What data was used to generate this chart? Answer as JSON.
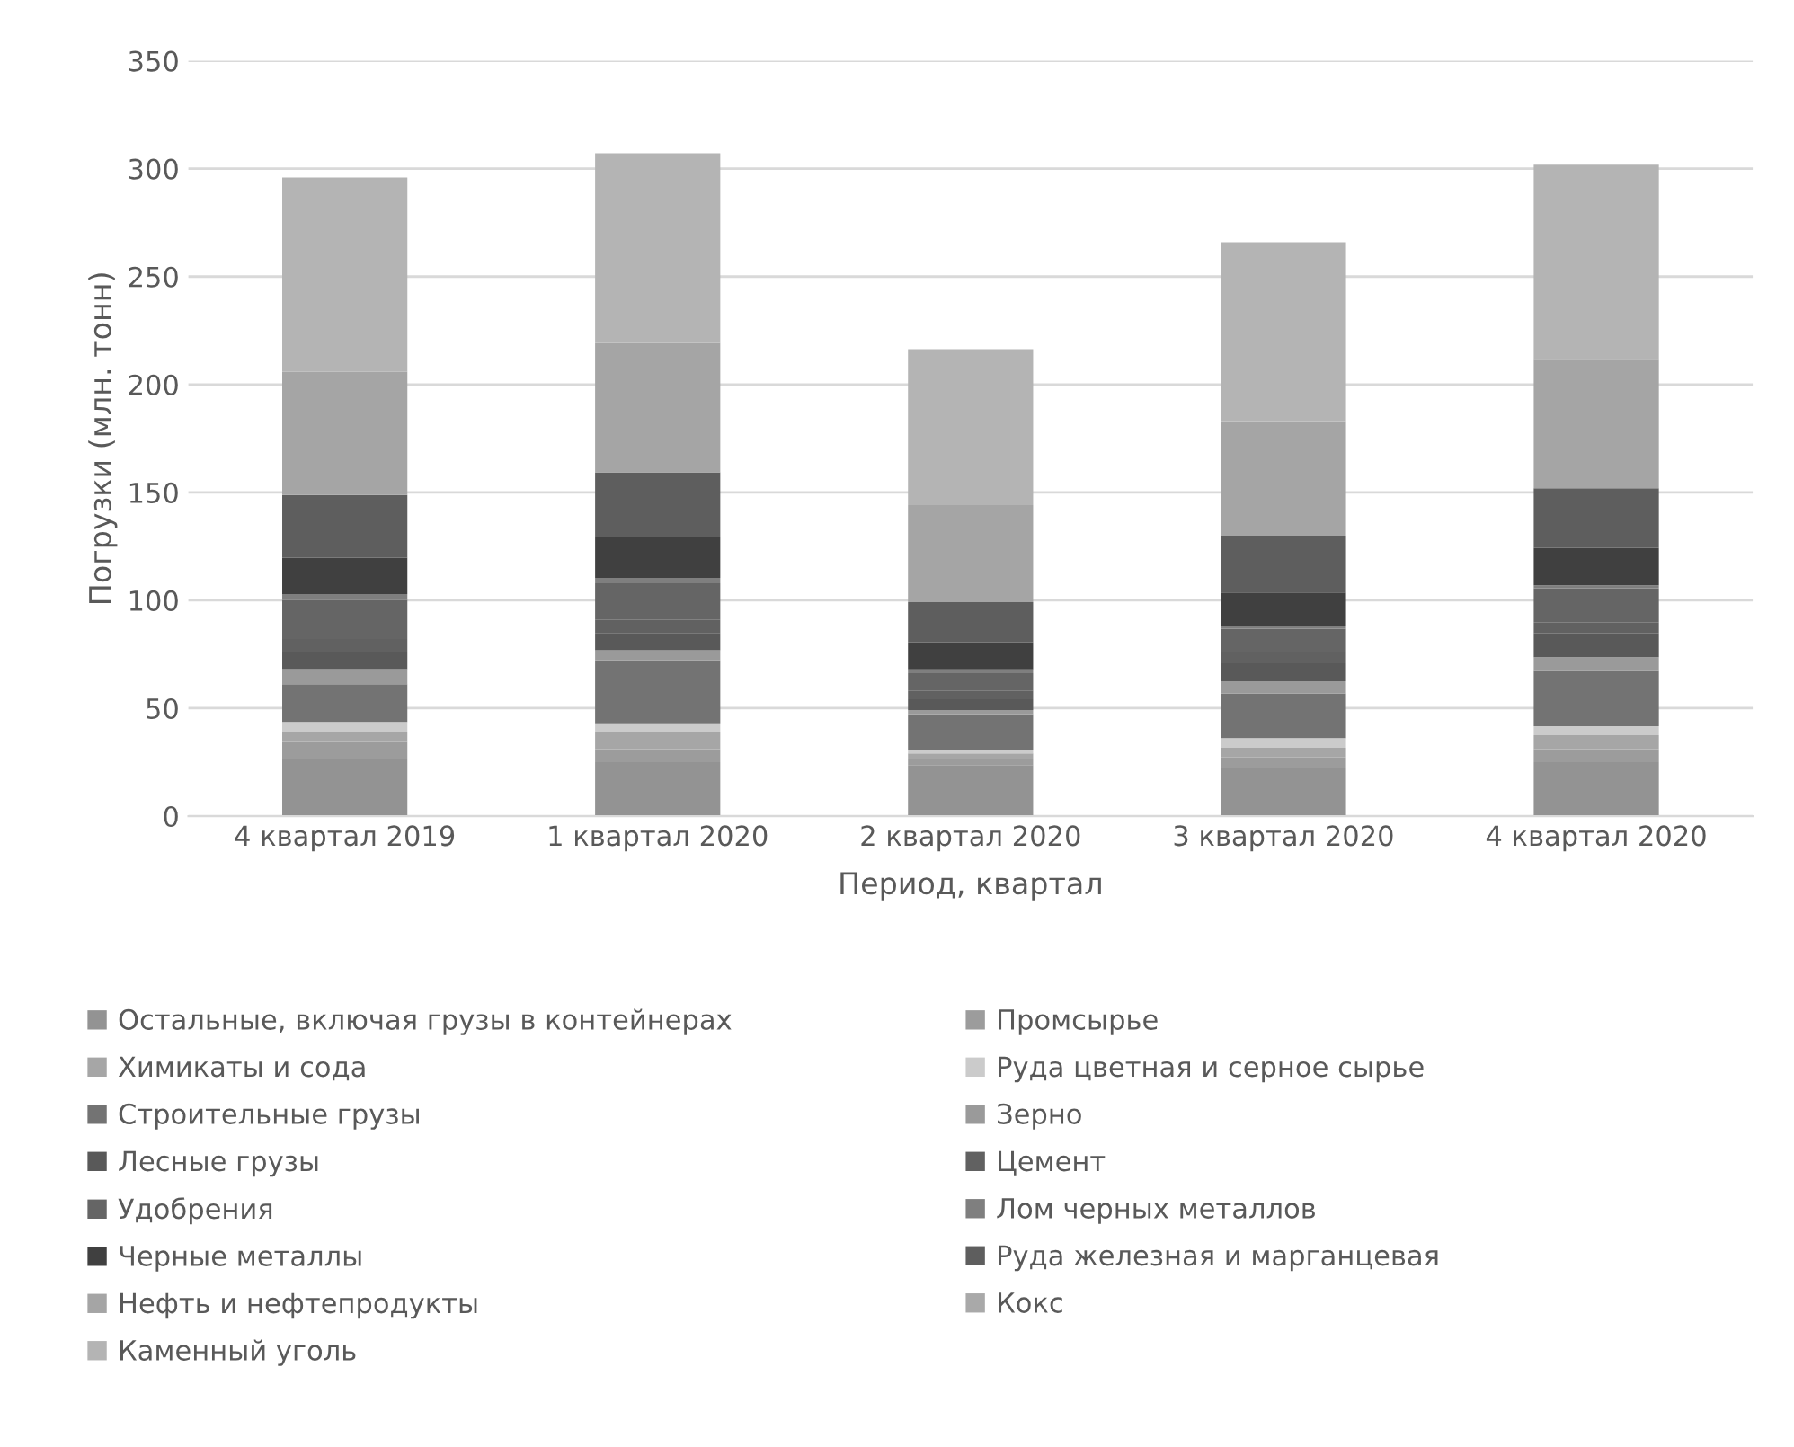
{
  "chart_data": {
    "type": "bar",
    "stacked": true,
    "xlabel": "Период, квартал",
    "ylabel": "Погрузки (млн. тонн)",
    "categories": [
      "4 квартал 2019",
      "1 квартал 2020",
      "2 квартал 2020",
      "3 квартал 2020",
      "4 квартал 2020"
    ],
    "ylim": [
      0,
      350
    ],
    "yticks": [
      0,
      50,
      100,
      150,
      200,
      250,
      300,
      350
    ],
    "grid": "y",
    "legend": "bottom",
    "series": [
      {
        "name": "Остальные, включая грузы в контейнерах",
        "color": "#939393",
        "values": [
          26.4,
          25,
          23.6,
          22.2,
          25
        ]
      },
      {
        "name": "Промсырье",
        "color": "#9c9c9c",
        "values": [
          8,
          6,
          3,
          5,
          6
        ]
      },
      {
        "name": "Химикаты и сода",
        "color": "#a6a6a6",
        "values": [
          4.6,
          8,
          2.5,
          4.5,
          6.5
        ]
      },
      {
        "name": "Руда цветная и серное сырье",
        "color": "#cbcbcb",
        "values": [
          4.6,
          4,
          1.5,
          4.4,
          4.2
        ]
      },
      {
        "name": "Строительные грузы",
        "color": "#737373",
        "values": [
          17.5,
          29.2,
          16.6,
          20.8,
          25.6
        ]
      },
      {
        "name": "Зерно",
        "color": "#9a9a9a",
        "values": [
          7,
          4.7,
          2,
          5.6,
          6.3
        ]
      },
      {
        "name": "Лесные грузы",
        "color": "#595959",
        "values": [
          8,
          8,
          5,
          8.3,
          11.1
        ]
      },
      {
        "name": "Цемент",
        "color": "#616161",
        "values": [
          6,
          6,
          4,
          5,
          5
        ]
      },
      {
        "name": "Удобрения",
        "color": "#656565",
        "values": [
          18,
          17,
          8,
          11.1,
          15.9
        ]
      },
      {
        "name": "Лом черных металлов",
        "color": "#7f7f7f",
        "values": [
          2.8,
          2.5,
          1.8,
          1.4,
          1.3
        ]
      },
      {
        "name": "Черные металлы",
        "color": "#404040",
        "values": [
          16.7,
          18.9,
          12.5,
          15.3,
          17.3
        ]
      },
      {
        "name": "Руда железная и марганцевая",
        "color": "#5e5e5e",
        "values": [
          29.2,
          30,
          18.6,
          26.4,
          27.7
        ]
      },
      {
        "name": "Нефть и нефтепродукты",
        "color": "#a5a5a5",
        "values": [
          57,
          60,
          45,
          53,
          60
        ]
      },
      {
        "name": "Кокс",
        "color": "#a9a9a9",
        "values": [
          null,
          null,
          null,
          null,
          null
        ]
      },
      {
        "name": "Каменный уголь",
        "color": "#b4b4b4",
        "values": [
          90.1,
          87.9,
          72.3,
          82.9,
          89.9
        ]
      }
    ]
  }
}
